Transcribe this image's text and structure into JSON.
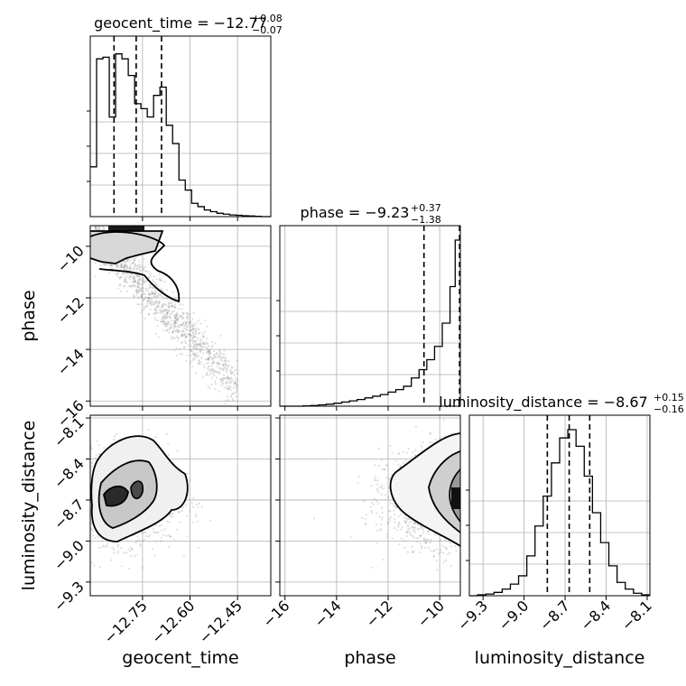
{
  "chart_data": {
    "type": "corner",
    "parameters": [
      "geocent_time",
      "phase",
      "luminosity_distance"
    ],
    "titles": [
      {
        "param": "geocent_time",
        "text": "geocent_time = −12.77",
        "sup": "+0.08",
        "sub": "−0.07"
      },
      {
        "param": "phase",
        "text": "phase = −9.23",
        "sup": "+0.37",
        "sub": "−1.38"
      },
      {
        "param": "luminosity_distance",
        "text": "luminosity_distance = −8.67",
        "sup": "+0.15",
        "sub": "−0.16"
      }
    ],
    "axes": {
      "geocent_time": {
        "label": "geocent_time",
        "range": [
          -12.915,
          -12.345
        ],
        "ticks": [
          -12.75,
          -12.6,
          -12.45
        ],
        "tick_labels": [
          "−12.75",
          "−12.60",
          "−12.45"
        ]
      },
      "phase": {
        "label": "phase",
        "range": [
          -16.2,
          -9.2
        ],
        "ticks": [
          -16,
          -14,
          -12,
          -10
        ],
        "tick_labels": [
          "−16",
          "−14",
          "−12",
          "−10"
        ]
      },
      "luminosity_distance": {
        "label": "luminosity_distance",
        "range": [
          -9.4,
          -8.08
        ],
        "ticks": [
          -9.3,
          -9.0,
          -8.7,
          -8.4,
          -8.1
        ],
        "tick_labels": [
          "−9.3",
          "−9.0",
          "−8.7",
          "−8.4",
          "−8.1"
        ]
      }
    },
    "histograms": {
      "geocent_time": {
        "bin_edges": [
          -12.915,
          -12.895,
          -12.875,
          -12.855,
          -12.835,
          -12.815,
          -12.795,
          -12.775,
          -12.755,
          -12.735,
          -12.715,
          -12.695,
          -12.675,
          -12.655,
          -12.635,
          -12.615,
          -12.595,
          -12.575,
          -12.555,
          -12.535,
          -12.515,
          -12.495,
          -12.475,
          -12.455,
          -12.435,
          -12.415,
          -12.395,
          -12.375,
          -12.345
        ],
        "counts": [
          0.3,
          0.95,
          0.96,
          0.6,
          0.98,
          0.95,
          0.85,
          0.68,
          0.65,
          0.6,
          0.73,
          0.78,
          0.55,
          0.44,
          0.22,
          0.16,
          0.08,
          0.06,
          0.04,
          0.03,
          0.02,
          0.015,
          0.01,
          0.008,
          0.005,
          0.004,
          0.002,
          0.0
        ]
      },
      "phase": {
        "bin_edges": [
          -16.2,
          -15.9,
          -15.6,
          -15.3,
          -15.0,
          -14.7,
          -14.4,
          -14.1,
          -13.8,
          -13.5,
          -13.2,
          -12.9,
          -12.6,
          -12.3,
          -12.0,
          -11.7,
          -11.4,
          -11.1,
          -10.8,
          -10.5,
          -10.2,
          -9.9,
          -9.6,
          -9.4,
          -9.2
        ],
        "counts": [
          0.0,
          0.0,
          0.0,
          0.002,
          0.004,
          0.008,
          0.012,
          0.018,
          0.025,
          0.032,
          0.04,
          0.05,
          0.06,
          0.07,
          0.085,
          0.1,
          0.12,
          0.17,
          0.22,
          0.28,
          0.36,
          0.5,
          0.72,
          1.0
        ]
      },
      "luminosity_distance": {
        "bin_edges": [
          -9.4,
          -9.34,
          -9.28,
          -9.22,
          -9.16,
          -9.1,
          -9.04,
          -8.98,
          -8.92,
          -8.86,
          -8.8,
          -8.74,
          -8.68,
          -8.62,
          -8.56,
          -8.5,
          -8.44,
          -8.38,
          -8.32,
          -8.26,
          -8.2,
          -8.14,
          -8.08
        ],
        "counts": [
          0.0,
          0.005,
          0.01,
          0.02,
          0.04,
          0.07,
          0.12,
          0.24,
          0.42,
          0.6,
          0.8,
          0.95,
          1.0,
          0.9,
          0.72,
          0.5,
          0.32,
          0.18,
          0.08,
          0.04,
          0.015,
          0.005
        ]
      }
    },
    "quantiles": {
      "geocent_time": [
        -12.84,
        -12.77,
        -12.69
      ],
      "phase": [
        -10.61,
        -9.23,
        -8.86
      ],
      "luminosity_distance": [
        -8.83,
        -8.67,
        -8.52
      ]
    },
    "scatter_2d": [
      {
        "x": "geocent_time",
        "y": "phase",
        "trend": "negative",
        "n_points": 1400
      },
      {
        "x": "geocent_time",
        "y": "luminosity_distance",
        "trend": "cluster",
        "n_points": 1500
      },
      {
        "x": "phase",
        "y": "luminosity_distance",
        "trend": "cluster",
        "n_points": 1500
      }
    ],
    "grid": true,
    "colors": {
      "line": "#000000",
      "points": "#808080",
      "grid": "#b0b0b0",
      "contour_fill": "#1a1a1a"
    }
  }
}
